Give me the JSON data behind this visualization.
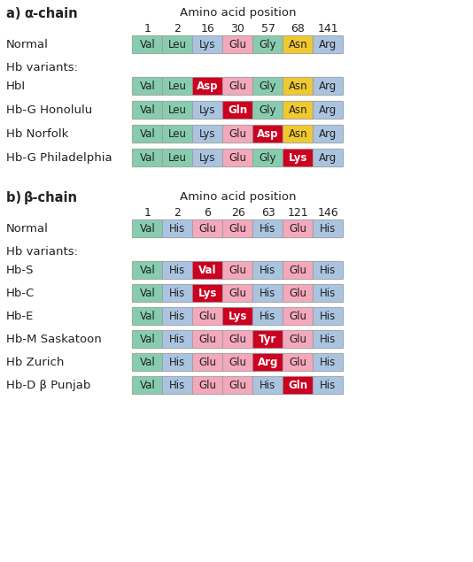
{
  "bg_color": "#ffffff",
  "amino_acid_label": "Amino acid position",
  "alpha_positions": [
    "1",
    "2",
    "16",
    "30",
    "57",
    "68",
    "141"
  ],
  "alpha_normal": {
    "label": "Normal",
    "cells": [
      {
        "text": "Val",
        "bg": "#88ccb0",
        "fg": "#222222",
        "bold": false
      },
      {
        "text": "Leu",
        "bg": "#88ccb0",
        "fg": "#222222",
        "bold": false
      },
      {
        "text": "Lys",
        "bg": "#aac4e0",
        "fg": "#222222",
        "bold": false
      },
      {
        "text": "Glu",
        "bg": "#f4a8bc",
        "fg": "#222222",
        "bold": false
      },
      {
        "text": "Gly",
        "bg": "#88ccb0",
        "fg": "#222222",
        "bold": false
      },
      {
        "text": "Asn",
        "bg": "#f0c830",
        "fg": "#222222",
        "bold": false
      },
      {
        "text": "Arg",
        "bg": "#aac4e0",
        "fg": "#222222",
        "bold": false
      }
    ]
  },
  "alpha_variants": [
    {
      "label": "HbI",
      "cells": [
        {
          "text": "Val",
          "bg": "#88ccb0",
          "fg": "#222222",
          "bold": false
        },
        {
          "text": "Leu",
          "bg": "#88ccb0",
          "fg": "#222222",
          "bold": false
        },
        {
          "text": "Asp",
          "bg": "#cc0020",
          "fg": "#ffffff",
          "bold": true
        },
        {
          "text": "Glu",
          "bg": "#f4a8bc",
          "fg": "#222222",
          "bold": false
        },
        {
          "text": "Gly",
          "bg": "#88ccb0",
          "fg": "#222222",
          "bold": false
        },
        {
          "text": "Asn",
          "bg": "#f0c830",
          "fg": "#222222",
          "bold": false
        },
        {
          "text": "Arg",
          "bg": "#aac4e0",
          "fg": "#222222",
          "bold": false
        }
      ]
    },
    {
      "label": "Hb-G Honolulu",
      "cells": [
        {
          "text": "Val",
          "bg": "#88ccb0",
          "fg": "#222222",
          "bold": false
        },
        {
          "text": "Leu",
          "bg": "#88ccb0",
          "fg": "#222222",
          "bold": false
        },
        {
          "text": "Lys",
          "bg": "#aac4e0",
          "fg": "#222222",
          "bold": false
        },
        {
          "text": "Gln",
          "bg": "#cc0020",
          "fg": "#ffffff",
          "bold": true
        },
        {
          "text": "Gly",
          "bg": "#88ccb0",
          "fg": "#222222",
          "bold": false
        },
        {
          "text": "Asn",
          "bg": "#f0c830",
          "fg": "#222222",
          "bold": false
        },
        {
          "text": "Arg",
          "bg": "#aac4e0",
          "fg": "#222222",
          "bold": false
        }
      ]
    },
    {
      "label": "Hb Norfolk",
      "cells": [
        {
          "text": "Val",
          "bg": "#88ccb0",
          "fg": "#222222",
          "bold": false
        },
        {
          "text": "Leu",
          "bg": "#88ccb0",
          "fg": "#222222",
          "bold": false
        },
        {
          "text": "Lys",
          "bg": "#aac4e0",
          "fg": "#222222",
          "bold": false
        },
        {
          "text": "Glu",
          "bg": "#f4a8bc",
          "fg": "#222222",
          "bold": false
        },
        {
          "text": "Asp",
          "bg": "#cc0020",
          "fg": "#ffffff",
          "bold": true
        },
        {
          "text": "Asn",
          "bg": "#f0c830",
          "fg": "#222222",
          "bold": false
        },
        {
          "text": "Arg",
          "bg": "#aac4e0",
          "fg": "#222222",
          "bold": false
        }
      ]
    },
    {
      "label": "Hb-G Philadelphia",
      "cells": [
        {
          "text": "Val",
          "bg": "#88ccb0",
          "fg": "#222222",
          "bold": false
        },
        {
          "text": "Leu",
          "bg": "#88ccb0",
          "fg": "#222222",
          "bold": false
        },
        {
          "text": "Lys",
          "bg": "#aac4e0",
          "fg": "#222222",
          "bold": false
        },
        {
          "text": "Glu",
          "bg": "#f4a8bc",
          "fg": "#222222",
          "bold": false
        },
        {
          "text": "Gly",
          "bg": "#88ccb0",
          "fg": "#222222",
          "bold": false
        },
        {
          "text": "Lys",
          "bg": "#cc0020",
          "fg": "#ffffff",
          "bold": true
        },
        {
          "text": "Arg",
          "bg": "#aac4e0",
          "fg": "#222222",
          "bold": false
        }
      ]
    }
  ],
  "beta_positions": [
    "1",
    "2",
    "6",
    "26",
    "63",
    "121",
    "146"
  ],
  "beta_normal": {
    "label": "Normal",
    "cells": [
      {
        "text": "Val",
        "bg": "#88ccb0",
        "fg": "#222222",
        "bold": false
      },
      {
        "text": "His",
        "bg": "#aac4e0",
        "fg": "#222222",
        "bold": false
      },
      {
        "text": "Glu",
        "bg": "#f4a8bc",
        "fg": "#222222",
        "bold": false
      },
      {
        "text": "Glu",
        "bg": "#f4a8bc",
        "fg": "#222222",
        "bold": false
      },
      {
        "text": "His",
        "bg": "#aac4e0",
        "fg": "#222222",
        "bold": false
      },
      {
        "text": "Glu",
        "bg": "#f4a8bc",
        "fg": "#222222",
        "bold": false
      },
      {
        "text": "His",
        "bg": "#aac4e0",
        "fg": "#222222",
        "bold": false
      }
    ]
  },
  "beta_variants": [
    {
      "label": "Hb-S",
      "cells": [
        {
          "text": "Val",
          "bg": "#88ccb0",
          "fg": "#222222",
          "bold": false
        },
        {
          "text": "His",
          "bg": "#aac4e0",
          "fg": "#222222",
          "bold": false
        },
        {
          "text": "Val",
          "bg": "#cc0020",
          "fg": "#ffffff",
          "bold": true
        },
        {
          "text": "Glu",
          "bg": "#f4a8bc",
          "fg": "#222222",
          "bold": false
        },
        {
          "text": "His",
          "bg": "#aac4e0",
          "fg": "#222222",
          "bold": false
        },
        {
          "text": "Glu",
          "bg": "#f4a8bc",
          "fg": "#222222",
          "bold": false
        },
        {
          "text": "His",
          "bg": "#aac4e0",
          "fg": "#222222",
          "bold": false
        }
      ]
    },
    {
      "label": "Hb-C",
      "cells": [
        {
          "text": "Val",
          "bg": "#88ccb0",
          "fg": "#222222",
          "bold": false
        },
        {
          "text": "His",
          "bg": "#aac4e0",
          "fg": "#222222",
          "bold": false
        },
        {
          "text": "Lys",
          "bg": "#cc0020",
          "fg": "#ffffff",
          "bold": true
        },
        {
          "text": "Glu",
          "bg": "#f4a8bc",
          "fg": "#222222",
          "bold": false
        },
        {
          "text": "His",
          "bg": "#aac4e0",
          "fg": "#222222",
          "bold": false
        },
        {
          "text": "Glu",
          "bg": "#f4a8bc",
          "fg": "#222222",
          "bold": false
        },
        {
          "text": "His",
          "bg": "#aac4e0",
          "fg": "#222222",
          "bold": false
        }
      ]
    },
    {
      "label": "Hb-E",
      "cells": [
        {
          "text": "Val",
          "bg": "#88ccb0",
          "fg": "#222222",
          "bold": false
        },
        {
          "text": "His",
          "bg": "#aac4e0",
          "fg": "#222222",
          "bold": false
        },
        {
          "text": "Glu",
          "bg": "#f4a8bc",
          "fg": "#222222",
          "bold": false
        },
        {
          "text": "Lys",
          "bg": "#cc0020",
          "fg": "#ffffff",
          "bold": true
        },
        {
          "text": "His",
          "bg": "#aac4e0",
          "fg": "#222222",
          "bold": false
        },
        {
          "text": "Glu",
          "bg": "#f4a8bc",
          "fg": "#222222",
          "bold": false
        },
        {
          "text": "His",
          "bg": "#aac4e0",
          "fg": "#222222",
          "bold": false
        }
      ]
    },
    {
      "label": "Hb-M Saskatoon",
      "cells": [
        {
          "text": "Val",
          "bg": "#88ccb0",
          "fg": "#222222",
          "bold": false
        },
        {
          "text": "His",
          "bg": "#aac4e0",
          "fg": "#222222",
          "bold": false
        },
        {
          "text": "Glu",
          "bg": "#f4a8bc",
          "fg": "#222222",
          "bold": false
        },
        {
          "text": "Glu",
          "bg": "#f4a8bc",
          "fg": "#222222",
          "bold": false
        },
        {
          "text": "Tyr",
          "bg": "#cc0020",
          "fg": "#ffffff",
          "bold": true
        },
        {
          "text": "Glu",
          "bg": "#f4a8bc",
          "fg": "#222222",
          "bold": false
        },
        {
          "text": "His",
          "bg": "#aac4e0",
          "fg": "#222222",
          "bold": false
        }
      ]
    },
    {
      "label": "Hb Zurich",
      "cells": [
        {
          "text": "Val",
          "bg": "#88ccb0",
          "fg": "#222222",
          "bold": false
        },
        {
          "text": "His",
          "bg": "#aac4e0",
          "fg": "#222222",
          "bold": false
        },
        {
          "text": "Glu",
          "bg": "#f4a8bc",
          "fg": "#222222",
          "bold": false
        },
        {
          "text": "Glu",
          "bg": "#f4a8bc",
          "fg": "#222222",
          "bold": false
        },
        {
          "text": "Arg",
          "bg": "#cc0020",
          "fg": "#ffffff",
          "bold": true
        },
        {
          "text": "Glu",
          "bg": "#f4a8bc",
          "fg": "#222222",
          "bold": false
        },
        {
          "text": "His",
          "bg": "#aac4e0",
          "fg": "#222222",
          "bold": false
        }
      ]
    },
    {
      "label": "Hb-D β Punjab",
      "cells": [
        {
          "text": "Val",
          "bg": "#88ccb0",
          "fg": "#222222",
          "bold": false
        },
        {
          "text": "His",
          "bg": "#aac4e0",
          "fg": "#222222",
          "bold": false
        },
        {
          "text": "Glu",
          "bg": "#f4a8bc",
          "fg": "#222222",
          "bold": false
        },
        {
          "text": "Glu",
          "bg": "#f4a8bc",
          "fg": "#222222",
          "bold": false
        },
        {
          "text": "His",
          "bg": "#aac4e0",
          "fg": "#222222",
          "bold": false
        },
        {
          "text": "Gln",
          "bg": "#cc0020",
          "fg": "#ffffff",
          "bold": true
        },
        {
          "text": "His",
          "bg": "#aac4e0",
          "fg": "#222222",
          "bold": false
        }
      ]
    }
  ]
}
